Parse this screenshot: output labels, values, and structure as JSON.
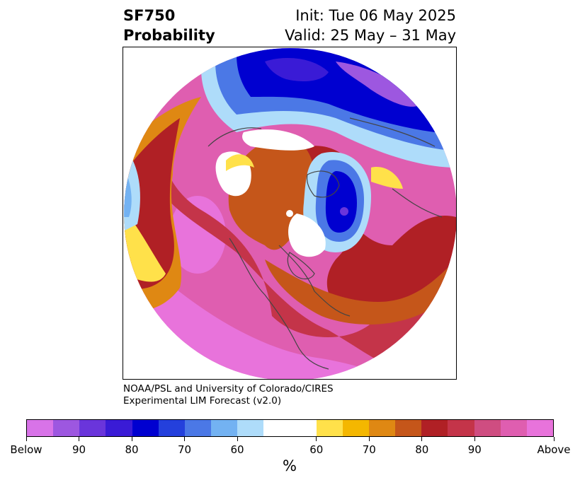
{
  "title": {
    "line1_left": "SF750",
    "line2_left": "Probability",
    "line1_right": "Init: Tue 06 May 2025",
    "line2_right": "Valid: 25 May – 31 May"
  },
  "credit": {
    "line1": "NOAA/PSL and University of Colorado/CIRES",
    "line2": "Experimental LIM Forecast (v2.0)"
  },
  "colorbar": {
    "units": "%",
    "below_colors": [
      "#d873e8",
      "#9d57e0",
      "#6a35db",
      "#3a1bd6",
      "#0000d0",
      "#2440dc",
      "#4b78e6",
      "#73b2f2",
      "#aedcfa"
    ],
    "neutral_color": "#ffffff",
    "above_colors": [
      "#ffe14a",
      "#f4b700",
      "#df8813",
      "#c5561a",
      "#b02025",
      "#c43449",
      "#cf4d81",
      "#df5eb0",
      "#e873db"
    ],
    "tick_labels": [
      "Below",
      "90",
      "80",
      "70",
      "60",
      "60",
      "70",
      "80",
      "90",
      "Above"
    ]
  },
  "map": {
    "projection": "north-polar-stereographic",
    "variable": "SF750 probability",
    "marker": "white-dot"
  }
}
